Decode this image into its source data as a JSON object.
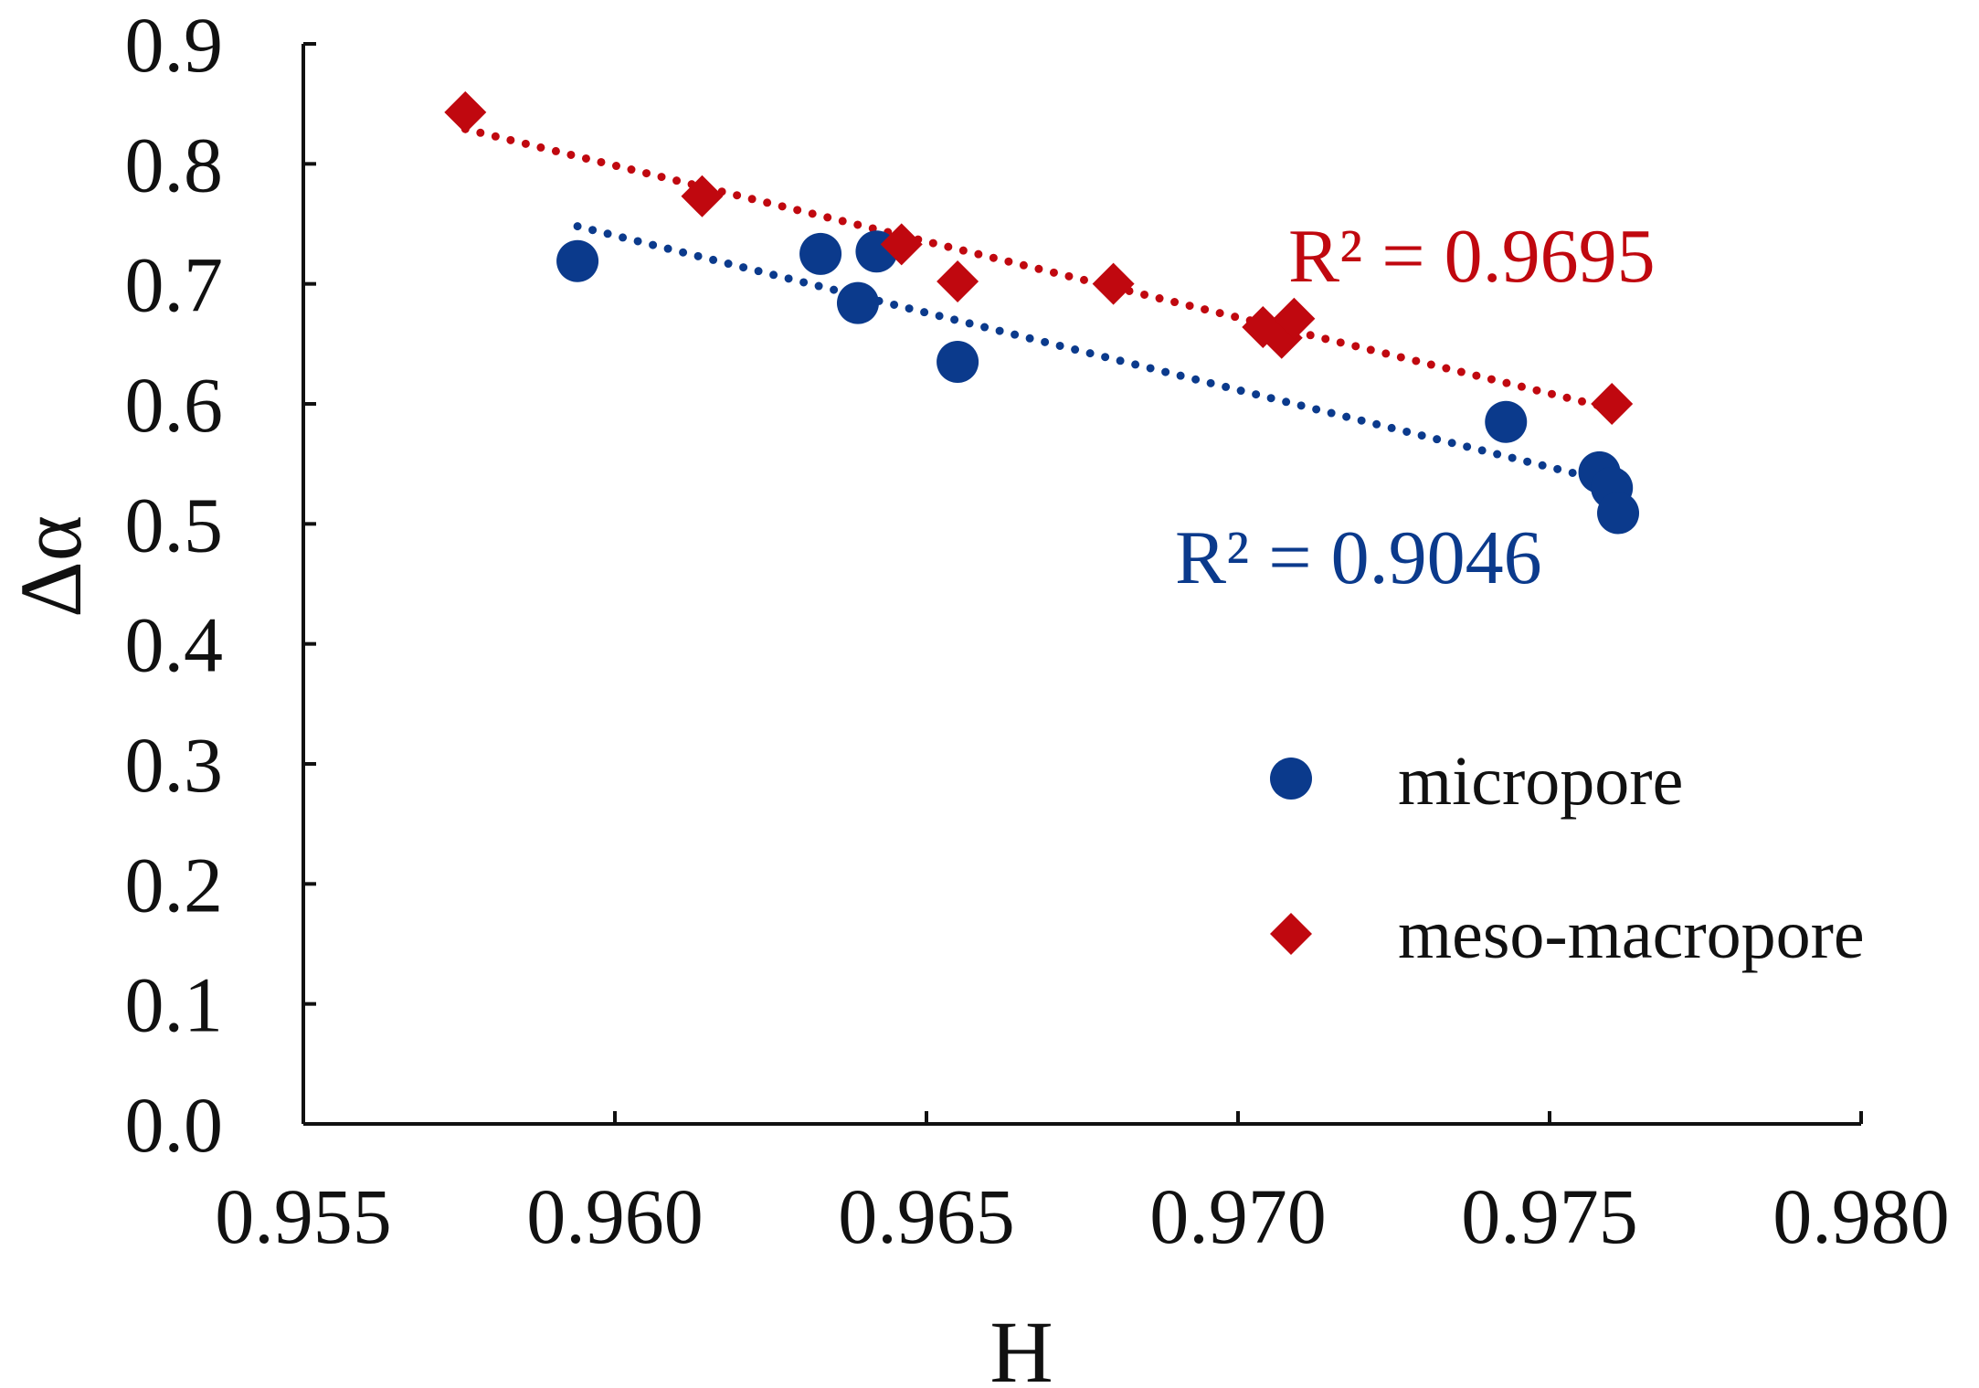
{
  "chart_data": {
    "type": "scatter",
    "title": "",
    "xlabel": "H",
    "ylabel": "Δα",
    "xlim": [
      0.955,
      0.98
    ],
    "ylim": [
      0.0,
      0.9
    ],
    "x_ticks": [
      "0.955",
      "0.960",
      "0.965",
      "0.970",
      "0.975",
      "0.980"
    ],
    "y_ticks": [
      "0.0",
      "0.1",
      "0.2",
      "0.3",
      "0.4",
      "0.5",
      "0.6",
      "0.7",
      "0.8",
      "0.9"
    ],
    "grid": false,
    "legend_position": "right",
    "series": [
      {
        "name": "micropore",
        "marker": "circle",
        "color": "#0b3a8c",
        "points": [
          {
            "x": 0.9594,
            "y": 0.719
          },
          {
            "x": 0.9633,
            "y": 0.725
          },
          {
            "x": 0.9642,
            "y": 0.727
          },
          {
            "x": 0.9639,
            "y": 0.684
          },
          {
            "x": 0.9655,
            "y": 0.635
          },
          {
            "x": 0.9743,
            "y": 0.585
          },
          {
            "x": 0.9758,
            "y": 0.543
          },
          {
            "x": 0.976,
            "y": 0.53
          },
          {
            "x": 0.9761,
            "y": 0.509
          }
        ],
        "trendline": {
          "style": "dotted",
          "x_start": 0.9594,
          "y_start": 0.748,
          "x_end": 0.9758,
          "y_end": 0.537
        },
        "r2_label": "R² = 0.9046"
      },
      {
        "name": "meso-macropore",
        "marker": "diamond",
        "color": "#c0080f",
        "points": [
          {
            "x": 0.9576,
            "y": 0.843
          },
          {
            "x": 0.9614,
            "y": 0.773
          },
          {
            "x": 0.9646,
            "y": 0.733
          },
          {
            "x": 0.9655,
            "y": 0.702
          },
          {
            "x": 0.968,
            "y": 0.7
          },
          {
            "x": 0.9704,
            "y": 0.664
          },
          {
            "x": 0.9707,
            "y": 0.655
          },
          {
            "x": 0.9709,
            "y": 0.671
          },
          {
            "x": 0.976,
            "y": 0.6
          }
        ],
        "trendline": {
          "style": "dotted",
          "x_start": 0.9576,
          "y_start": 0.829,
          "x_end": 0.976,
          "y_end": 0.596
        },
        "r2_label": "R² = 0.9695"
      }
    ]
  }
}
